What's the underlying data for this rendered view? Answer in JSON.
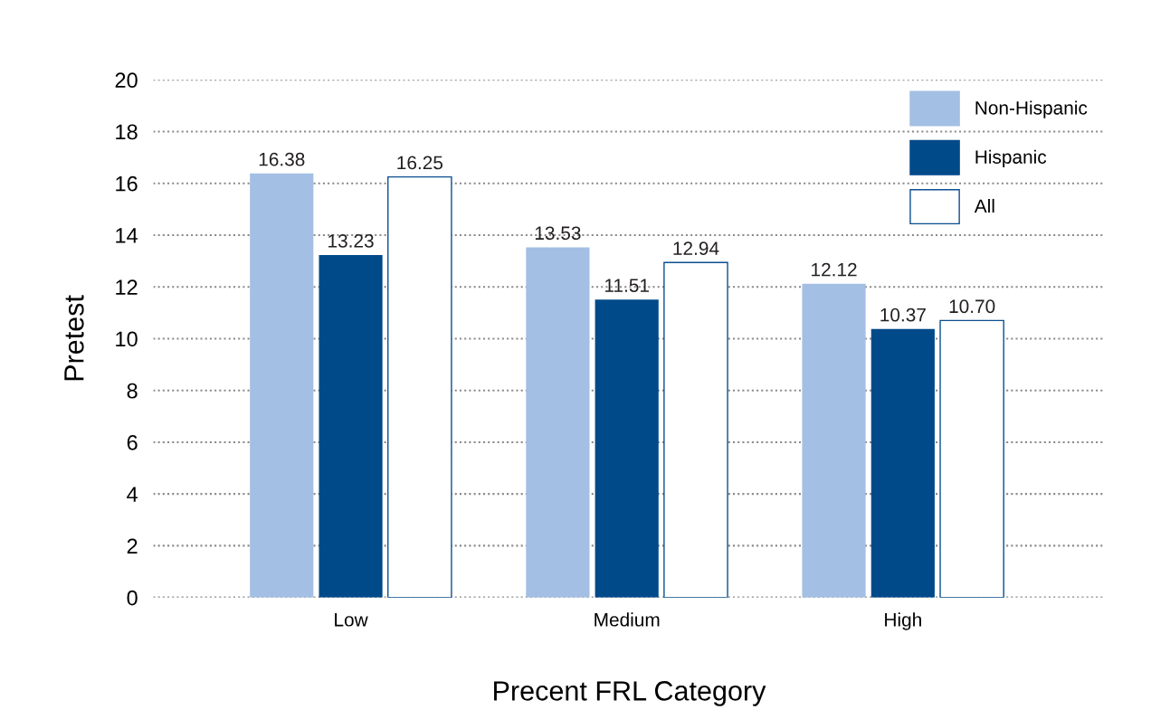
{
  "chart_data": {
    "type": "bar",
    "xlabel": "Precent FRL Category",
    "ylabel": "Pretest",
    "categories": [
      "Low",
      "Medium",
      "High"
    ],
    "series": [
      {
        "name": "Non-Hispanic",
        "color": "#a3bfe3",
        "values": [
          16.38,
          13.53,
          12.12
        ],
        "value_labels": [
          "16.38",
          "13.53",
          "12.12"
        ]
      },
      {
        "name": "Hispanic",
        "color": "#004a8a",
        "values": [
          13.23,
          11.51,
          10.37
        ],
        "value_labels": [
          "13.23",
          "11.51",
          "10.37"
        ]
      },
      {
        "name": "All",
        "color": "#ffffff",
        "values": [
          16.25,
          12.94,
          10.7
        ],
        "value_labels": [
          "16.25",
          "12.94",
          "10.70"
        ]
      }
    ],
    "ylim": [
      0,
      20
    ],
    "yticks": [
      0,
      2,
      4,
      6,
      8,
      10,
      12,
      14,
      16,
      18,
      20
    ],
    "grid": "y",
    "legend": "top right"
  }
}
